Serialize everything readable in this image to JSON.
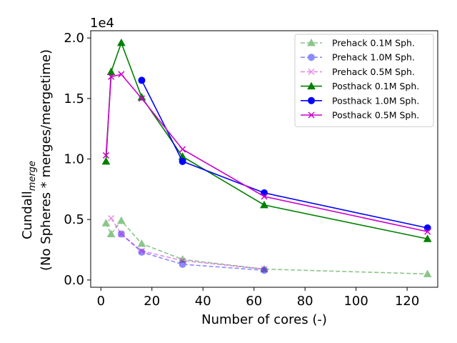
{
  "chart_data": {
    "type": "line",
    "xlabel": "Number of cores (-)",
    "ylabel_main": "Cundall",
    "ylabel_sub": "merge",
    "ylabel_line2": "(No Spheres * merges/mergetime)",
    "offset_text": "1e4",
    "xlim": [
      -4,
      132
    ],
    "ylim": [
      -0.06,
      2.06
    ],
    "xticks": [
      0,
      20,
      40,
      60,
      80,
      100,
      120
    ],
    "xtick_labels": [
      "0",
      "20",
      "40",
      "60",
      "80",
      "100",
      "120"
    ],
    "yticks": [
      0.0,
      0.5,
      1.0,
      1.5,
      2.0
    ],
    "ytick_labels": [
      "0.0",
      "0.5",
      "1.0",
      "1.5",
      "2.0"
    ],
    "legend_position": "top-right",
    "grid": false,
    "series": [
      {
        "name": "Prehack 0.1M Sph.",
        "color": "#008000",
        "linestyle": "dashed",
        "marker": "triangle",
        "alpha": 0.45,
        "x": [
          2,
          4,
          8,
          16,
          32,
          64,
          128
        ],
        "y": [
          0.47,
          0.38,
          0.49,
          0.3,
          0.17,
          0.09,
          0.05
        ]
      },
      {
        "name": "Prehack 1.0M Sph.",
        "color": "#0000ff",
        "linestyle": "dashed",
        "marker": "circle",
        "alpha": 0.45,
        "x": [
          8,
          16,
          32,
          64
        ],
        "y": [
          0.38,
          0.23,
          0.13,
          0.08
        ]
      },
      {
        "name": "Prehack 0.5M Sph.",
        "color": "#cc00cc",
        "linestyle": "dashed",
        "marker": "x",
        "alpha": 0.45,
        "x": [
          4,
          8,
          16,
          32,
          64
        ],
        "y": [
          0.51,
          0.38,
          0.24,
          0.16,
          0.09
        ]
      },
      {
        "name": "Posthack 0.1M Sph.",
        "color": "#008000",
        "linestyle": "solid",
        "marker": "triangle",
        "alpha": 1,
        "x": [
          2,
          4,
          8,
          16,
          32,
          64,
          128
        ],
        "y": [
          0.98,
          1.72,
          1.96,
          1.51,
          1.02,
          0.62,
          0.34
        ]
      },
      {
        "name": "Posthack 1.0M Sph.",
        "color": "#0000ff",
        "linestyle": "solid",
        "marker": "circle",
        "alpha": 1,
        "x": [
          16,
          32,
          64,
          128
        ],
        "y": [
          1.65,
          0.98,
          0.72,
          0.43
        ]
      },
      {
        "name": "Posthack 0.5M Sph.",
        "color": "#cc00cc",
        "linestyle": "solid",
        "marker": "x",
        "alpha": 1,
        "x": [
          2,
          4,
          8,
          16,
          32,
          64,
          128
        ],
        "y": [
          1.03,
          1.68,
          1.7,
          1.5,
          1.08,
          0.69,
          0.4
        ]
      }
    ]
  }
}
